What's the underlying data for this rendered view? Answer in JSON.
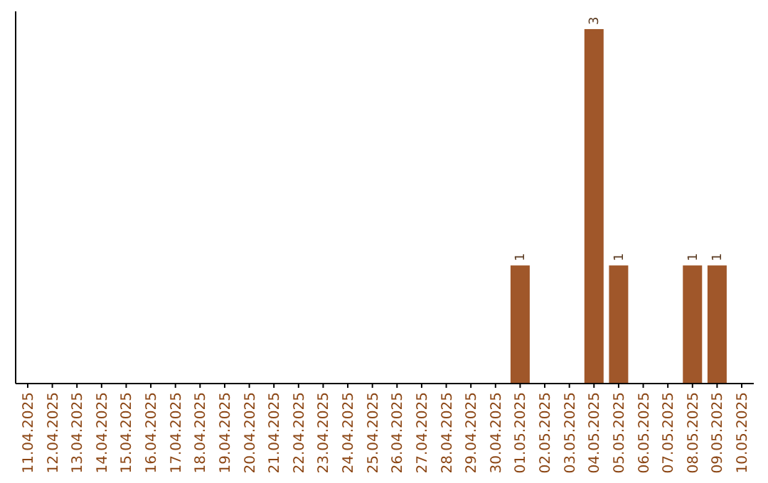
{
  "chart_data": {
    "type": "bar",
    "categories": [
      "11.04.2025",
      "12.04.2025",
      "13.04.2025",
      "14.04.2025",
      "15.04.2025",
      "16.04.2025",
      "17.04.2025",
      "18.04.2025",
      "19.04.2025",
      "20.04.2025",
      "21.04.2025",
      "22.04.2025",
      "23.04.2025",
      "24.04.2025",
      "25.04.2025",
      "26.04.2025",
      "27.04.2025",
      "28.04.2025",
      "29.04.2025",
      "30.04.2025",
      "01.05.2025",
      "02.05.2025",
      "03.05.2025",
      "04.05.2025",
      "05.05.2025",
      "06.05.2025",
      "07.05.2025",
      "08.05.2025",
      "09.05.2025",
      "10.05.2025"
    ],
    "values": [
      null,
      null,
      null,
      null,
      null,
      null,
      null,
      null,
      null,
      null,
      null,
      null,
      null,
      null,
      null,
      null,
      null,
      null,
      null,
      null,
      1,
      null,
      null,
      3,
      1,
      null,
      null,
      1,
      1,
      null
    ],
    "value_labels": [
      null,
      null,
      null,
      null,
      null,
      null,
      null,
      null,
      null,
      null,
      null,
      null,
      null,
      null,
      null,
      null,
      null,
      null,
      null,
      null,
      "1",
      null,
      null,
      "3",
      "1",
      null,
      null,
      "1",
      "1",
      null
    ],
    "color": "#a0572a"
  }
}
